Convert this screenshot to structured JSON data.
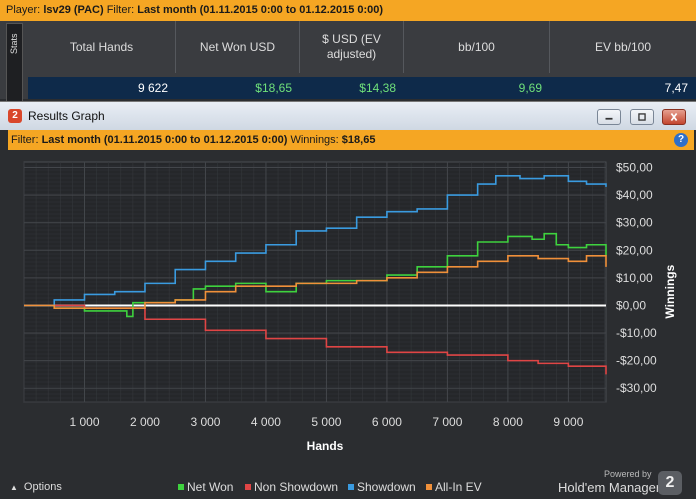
{
  "top_bar": {
    "player_label": "Player:",
    "player_value": "lsv29 (PAC)",
    "filter_label": "Filter:",
    "filter_value": "Last month (01.11.2015 0:00 to 01.12.2015 0:00)"
  },
  "stats": {
    "tab_label": "Stats",
    "headers": [
      "Total Hands",
      "Net Won USD",
      "$ USD (EV adjusted)",
      "bb/100",
      "EV bb/100"
    ],
    "row": [
      {
        "value": "9 622",
        "color": "#ffffff"
      },
      {
        "value": "$18,65",
        "color": "#6fe07a"
      },
      {
        "value": "$14,38",
        "color": "#6fe07a"
      },
      {
        "value": "9,69",
        "color": "#6fe07a"
      },
      {
        "value": "7,47",
        "color": "#ffffff"
      }
    ]
  },
  "results_window": {
    "title": "Results Graph",
    "logo_glyph": "2",
    "controls": [
      "minimize-icon",
      "maximize-icon",
      "close-icon"
    ],
    "help_glyph": "?"
  },
  "filter_bar": {
    "filter_label": "Filter:",
    "filter_value": "Last month (01.11.2015 0:00 to 01.12.2015 0:00)",
    "winnings_label": "Winnings:",
    "winnings_value": "$18,65"
  },
  "chart_data": {
    "type": "line",
    "xlabel": "Hands",
    "ylabel": "Winnings",
    "xlim": [
      0,
      9622
    ],
    "ylim": [
      -35,
      52
    ],
    "x_ticks": [
      1000,
      2000,
      3000,
      4000,
      5000,
      6000,
      7000,
      8000,
      9000
    ],
    "x_tick_labels": [
      "1 000",
      "2 000",
      "3 000",
      "4 000",
      "5 000",
      "6 000",
      "7 000",
      "8 000",
      "9 000"
    ],
    "y_ticks": [
      50,
      40,
      30,
      20,
      10,
      0,
      -10,
      -20,
      -30
    ],
    "y_tick_labels": [
      "$50,00",
      "$40,00",
      "$30,00",
      "$20,00",
      "$10,00",
      "$0,00",
      "-$10,00",
      "-$20,00",
      "-$30,00"
    ],
    "grid": true,
    "legend_position": "bottom",
    "series": [
      {
        "name": "Net Won",
        "color": "#3ed23e",
        "x": [
          0,
          500,
          1000,
          1500,
          1700,
          1800,
          2500,
          2800,
          3000,
          3500,
          4000,
          4500,
          5000,
          5500,
          6000,
          6500,
          7000,
          7500,
          8000,
          8400,
          8600,
          8800,
          9000,
          9300,
          9622
        ],
        "y": [
          0,
          -1,
          -2,
          -2,
          -4,
          1,
          2,
          6,
          7,
          8,
          5,
          8,
          9,
          9,
          11,
          14,
          18,
          23,
          25,
          24,
          26,
          22,
          21,
          22,
          18
        ]
      },
      {
        "name": "Non Showdown",
        "color": "#e04545",
        "x": [
          0,
          1000,
          2000,
          3000,
          4000,
          5000,
          6000,
          7000,
          8000,
          8500,
          9000,
          9622
        ],
        "y": [
          0,
          -1,
          -5,
          -9,
          -12,
          -15,
          -17,
          -18,
          -20,
          -21,
          -22,
          -25
        ]
      },
      {
        "name": "Showdown",
        "color": "#3a9be0",
        "x": [
          0,
          500,
          1000,
          1500,
          2000,
          2500,
          3000,
          3500,
          4000,
          4500,
          5000,
          5500,
          6000,
          6500,
          7000,
          7500,
          7800,
          8200,
          8600,
          9000,
          9300,
          9622
        ],
        "y": [
          0,
          2,
          4,
          5,
          8,
          13,
          16,
          19,
          22,
          27,
          28,
          32,
          34,
          35,
          40,
          44,
          47,
          46,
          47,
          45,
          44,
          43
        ]
      },
      {
        "name": "All-In EV",
        "color": "#f0903a",
        "x": [
          0,
          500,
          1000,
          1500,
          2000,
          2500,
          3000,
          3500,
          4000,
          4500,
          5000,
          5500,
          6000,
          6500,
          7000,
          7500,
          8000,
          8500,
          8800,
          9000,
          9300,
          9622
        ],
        "y": [
          0,
          -1,
          -1,
          -1,
          1,
          2,
          5,
          7,
          7,
          8,
          8,
          9,
          10,
          12,
          14,
          16,
          18,
          17,
          17,
          16,
          18,
          14
        ]
      }
    ]
  },
  "bottom_bar": {
    "options_label": "Options",
    "powered_by": "Powered by",
    "brand_name": "Hold'em Manager",
    "brand_logo": "2"
  }
}
